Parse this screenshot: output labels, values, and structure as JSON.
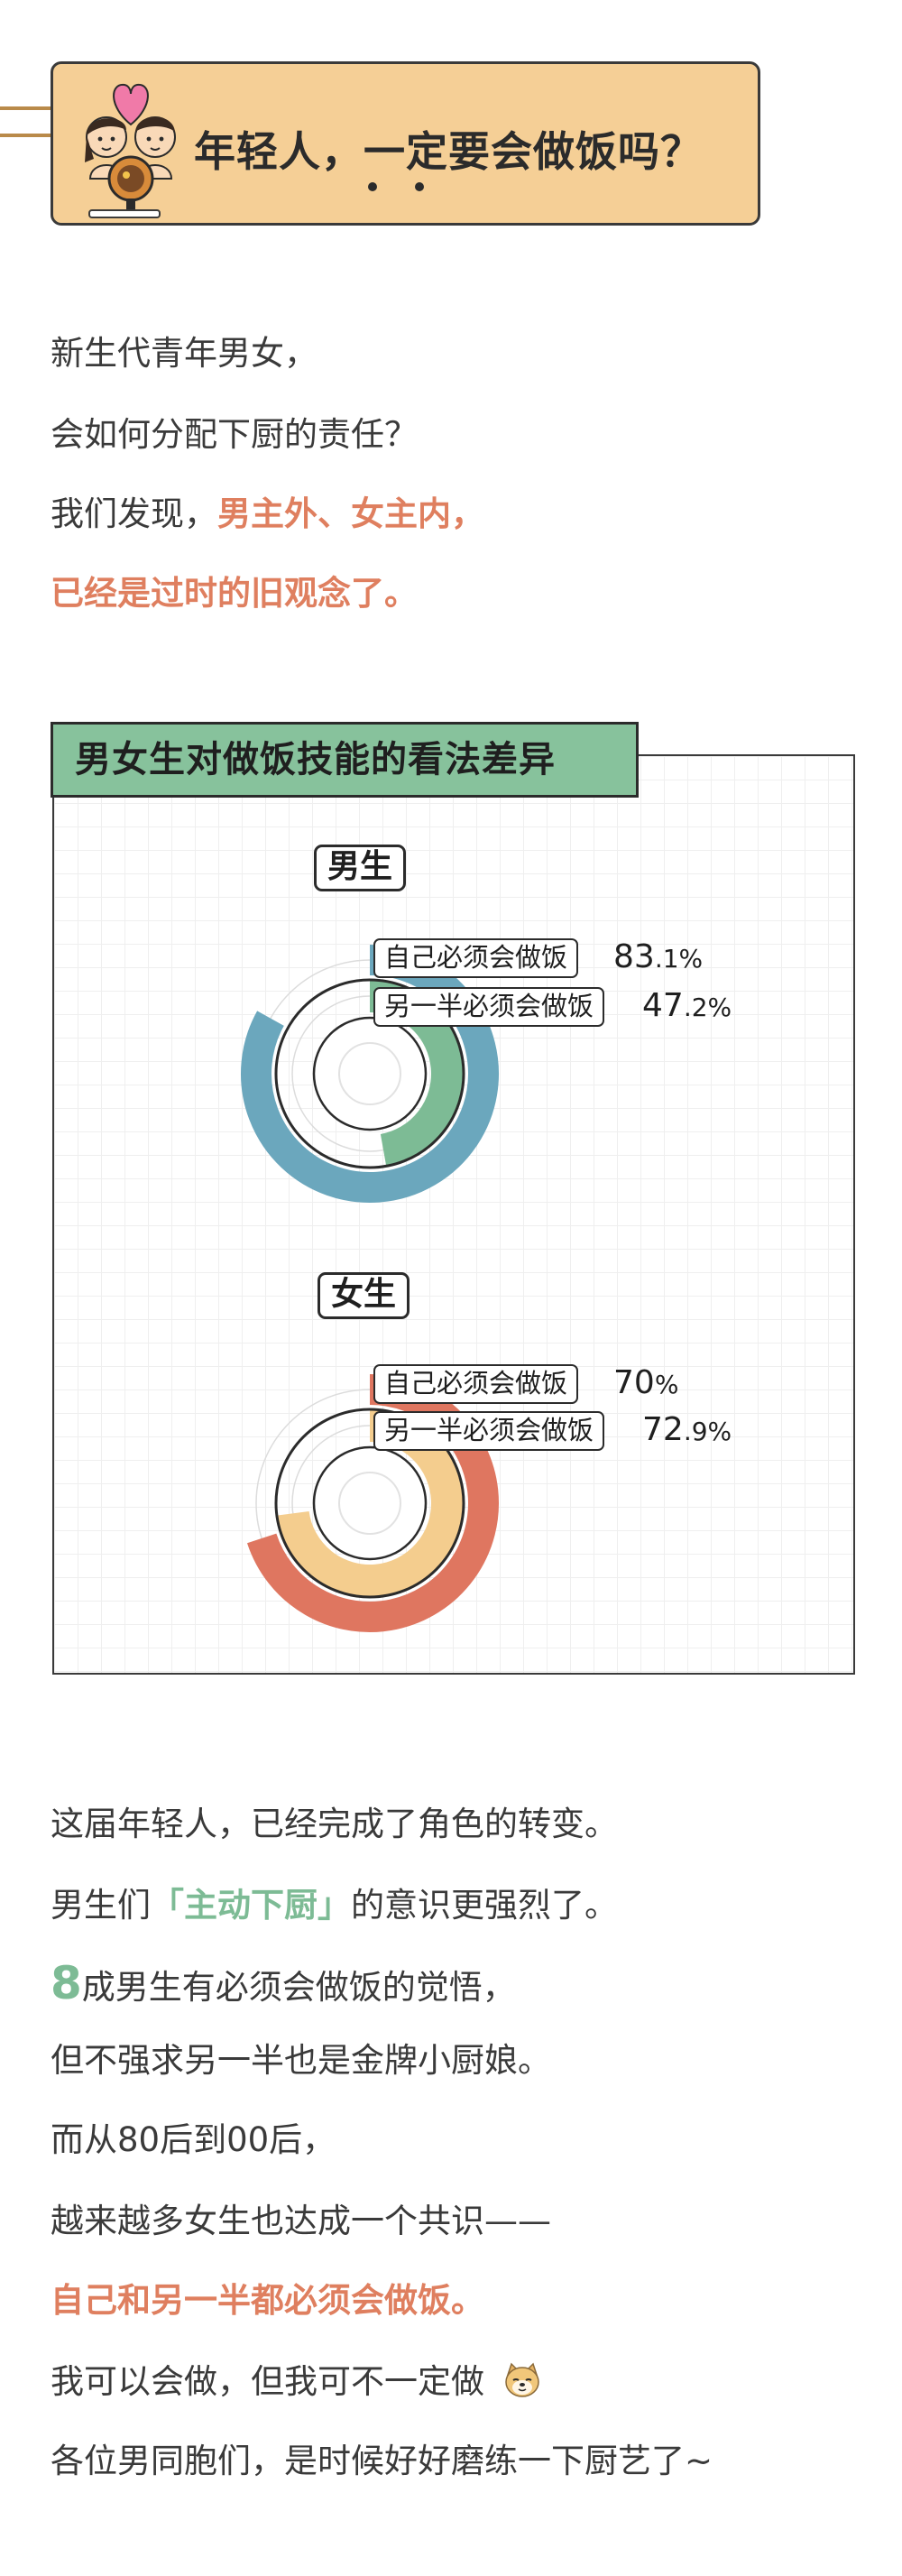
{
  "header": {
    "title": "年轻人，一定要会做饭吗？"
  },
  "intro": {
    "line1": "新生代青年男女，",
    "line2": "会如何分配下厨的责任？",
    "line3_prefix": "我们发现，",
    "line3_highlight": "男主外、女主内，",
    "line4_highlight": "已经是过时的旧观念了。"
  },
  "chart_card": {
    "title": "男女生对做饭技能的看法差异"
  },
  "chart_data": [
    {
      "type": "donut",
      "group": "男生",
      "categories": [
        "自己必须会做饭",
        "另一半必须会做饭"
      ],
      "values": [
        83.1,
        47.2
      ],
      "value_labels": [
        {
          "int": "83",
          "dec": ".1%"
        },
        {
          "int": "47",
          "dec": ".2%"
        }
      ],
      "colors": [
        "#6ba7bd",
        "#7dbb95"
      ],
      "unit": "%"
    },
    {
      "type": "donut",
      "group": "女生",
      "categories": [
        "自己必须会做饭",
        "另一半必须会做饭"
      ],
      "values": [
        70,
        72.9
      ],
      "value_labels": [
        {
          "int": "70",
          "dec": "%"
        },
        {
          "int": "72",
          "dec": ".9%"
        }
      ],
      "colors": [
        "#df7660",
        "#f4cd8e"
      ],
      "unit": "%"
    }
  ],
  "outro": {
    "line1": "这届年轻人，已经完成了角色的转变。",
    "line2_prefix": "男生们",
    "line2_highlight": "「主动下厨」",
    "line2_suffix": "的意识更强烈了。",
    "line3_big": "8",
    "line3_rest": "成男生有必须会做饭的觉悟，",
    "line4": "但不强求另一半也是金牌小厨娘。",
    "line5": "而从80后到00后，",
    "line6": "越来越多女生也达成一个共识——",
    "line7_highlight": "自己和另一半都必须会做饭。",
    "line8": "我可以会做，但我可不一定做",
    "line9": "各位男同胞们，是时候好好磨练一下厨艺了~"
  },
  "icons": {
    "couple": "couple-with-heart-icon",
    "doge": "doge-emoji-icon"
  }
}
